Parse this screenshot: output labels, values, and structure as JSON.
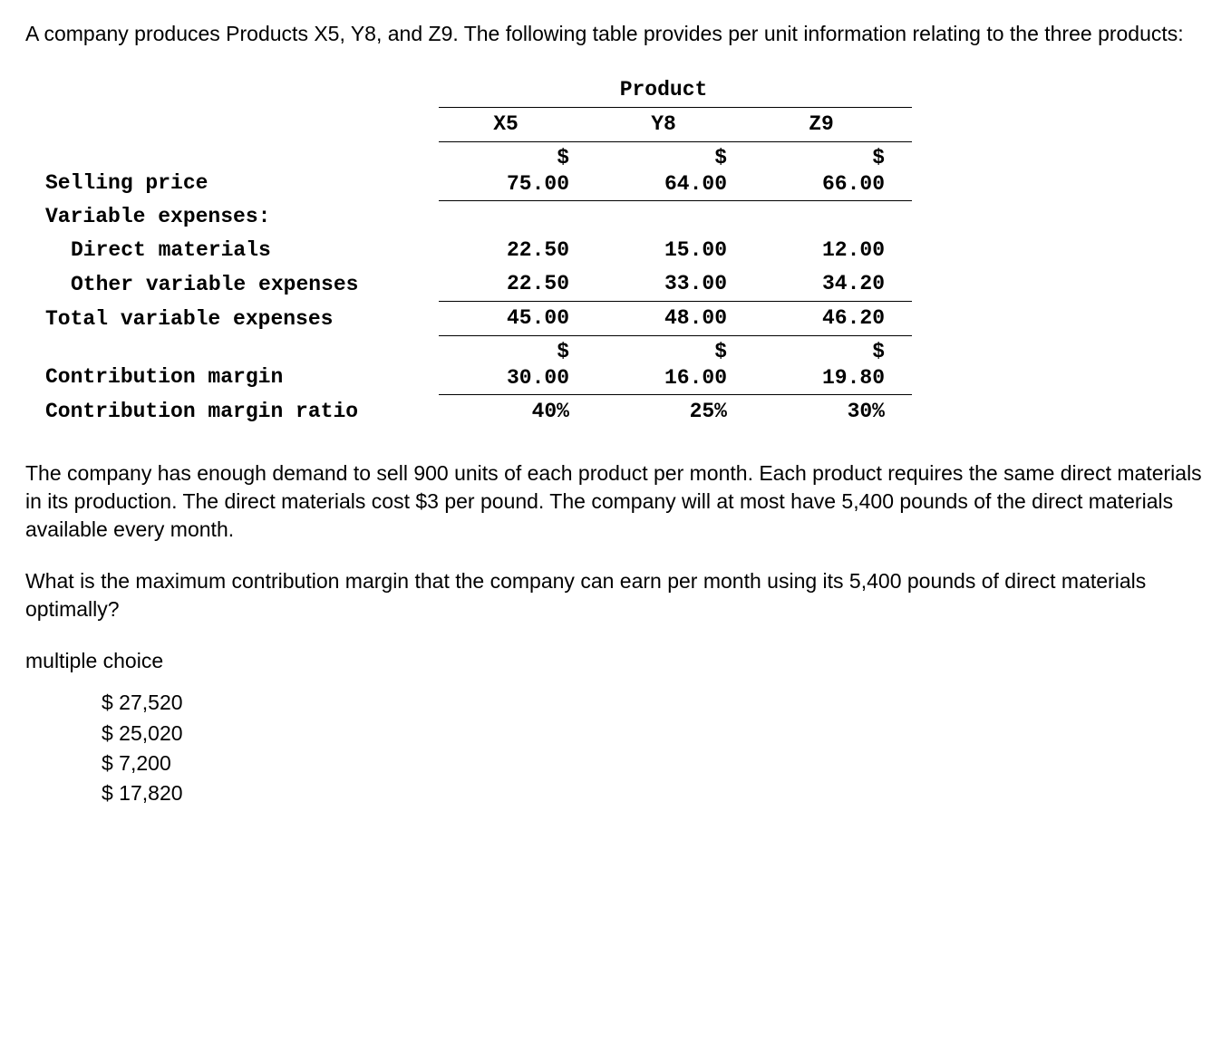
{
  "intro": "A company produces Products X5, Y8, and Z9. The following table provides per unit information relating to the three products:",
  "table": {
    "group_header": "Product",
    "columns": [
      "X5",
      "Y8",
      "Z9"
    ],
    "rows": {
      "selling_price": {
        "label": "Selling price",
        "currency": "$",
        "values": [
          "75.00",
          "64.00",
          "66.00"
        ]
      },
      "variable_expenses_header": "Variable expenses:",
      "direct_materials": {
        "label": "Direct materials",
        "values": [
          "22.50",
          "15.00",
          "12.00"
        ]
      },
      "other_variable": {
        "label": "Other variable expenses",
        "values": [
          "22.50",
          "33.00",
          "34.20"
        ]
      },
      "total_variable": {
        "label": "Total variable expenses",
        "values": [
          "45.00",
          "48.00",
          "46.20"
        ]
      },
      "contribution_margin": {
        "label": "Contribution margin",
        "currency": "$",
        "values": [
          "30.00",
          "16.00",
          "19.80"
        ]
      },
      "cm_ratio": {
        "label": "Contribution margin ratio",
        "values": [
          "40%",
          "25%",
          "30%"
        ]
      }
    }
  },
  "paragraph1": "The company has enough demand to sell 900 units of each product per month. Each product requires the same direct materials in its production. The direct materials cost $3 per pound. The company will at most have 5,400 pounds of the direct materials available every month.",
  "paragraph2": "What is the maximum contribution margin that the company can earn per month using its 5,400 pounds of direct materials optimally?",
  "mc_header": "multiple choice",
  "choices": [
    "$ 27,520",
    "$ 25,020",
    "$ 7,200",
    "$ 17,820"
  ],
  "colors": {
    "text": "#000000",
    "background": "#ffffff",
    "border": "#000000"
  }
}
